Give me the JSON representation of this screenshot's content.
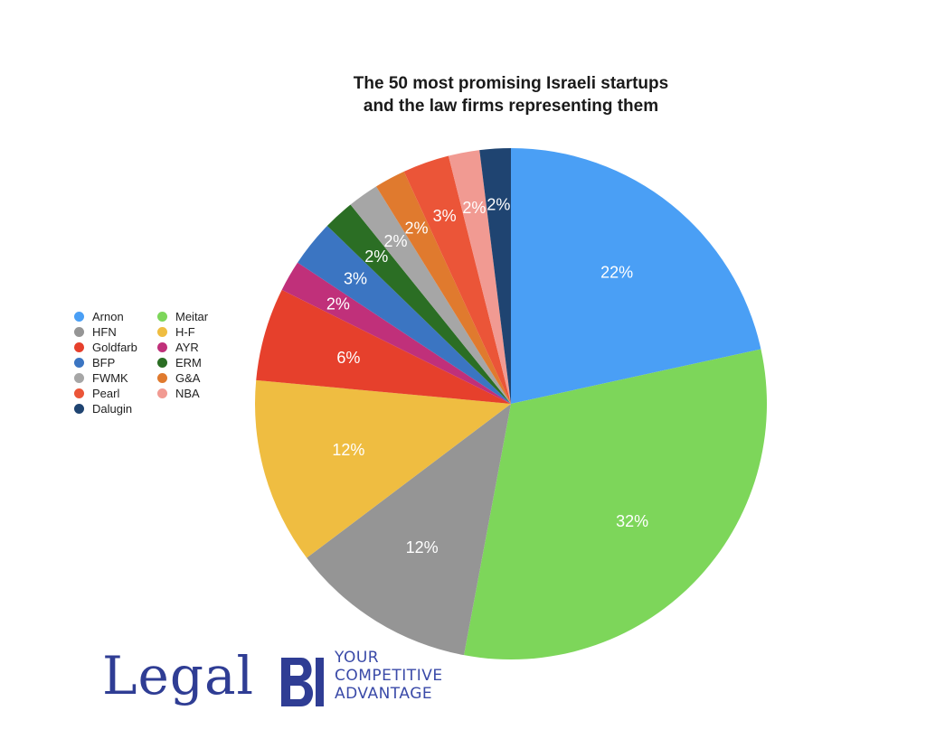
{
  "chart_data": {
    "type": "pie",
    "title": "The 50 most promising Israeli startups and the law firms representing them",
    "title_lines": [
      "The 50 most promising Israeli startups",
      "and the law firms representing them"
    ],
    "legend_position": "left",
    "slices": [
      {
        "label": "Arnon",
        "value": 22,
        "display": "22%",
        "color": "#4a9ff5"
      },
      {
        "label": "Meitar",
        "value": 32,
        "display": "32%",
        "color": "#7dd65a"
      },
      {
        "label": "HFN",
        "value": 12,
        "display": "12%",
        "color": "#959595"
      },
      {
        "label": "H-F",
        "value": 12,
        "display": "12%",
        "color": "#efbd41"
      },
      {
        "label": "Goldfarb",
        "value": 6,
        "display": "6%",
        "color": "#e6402c"
      },
      {
        "label": "AYR",
        "value": 2,
        "display": "2%",
        "color": "#c0307a"
      },
      {
        "label": "BFP",
        "value": 3,
        "display": "3%",
        "color": "#3b75c2"
      },
      {
        "label": "ERM",
        "value": 2,
        "display": "2%",
        "color": "#2b6e24"
      },
      {
        "label": "FWMK",
        "value": 2,
        "display": "2%",
        "color": "#a6a6a6"
      },
      {
        "label": "G&A",
        "value": 2,
        "display": "2%",
        "color": "#e07a2e"
      },
      {
        "label": "Pearl",
        "value": 3,
        "display": "3%",
        "color": "#eb5538"
      },
      {
        "label": "NBA",
        "value": 2,
        "display": "2%",
        "color": "#f19a92"
      },
      {
        "label": "Dalugin",
        "value": 2,
        "display": "2%",
        "color": "#1f4471"
      }
    ],
    "legend_order": [
      "Arnon",
      "Meitar",
      "HFN",
      "H-F",
      "Goldfarb",
      "AYR",
      "BFP",
      "ERM",
      "FWMK",
      "G&A",
      "Pearl",
      "NBA",
      "Dalugin"
    ]
  },
  "logo": {
    "word": "Legal",
    "mark": "BI",
    "tagline": [
      "YOUR",
      "COMPETITIVE",
      "ADVANTAGE"
    ],
    "color": "#2f3d94"
  }
}
